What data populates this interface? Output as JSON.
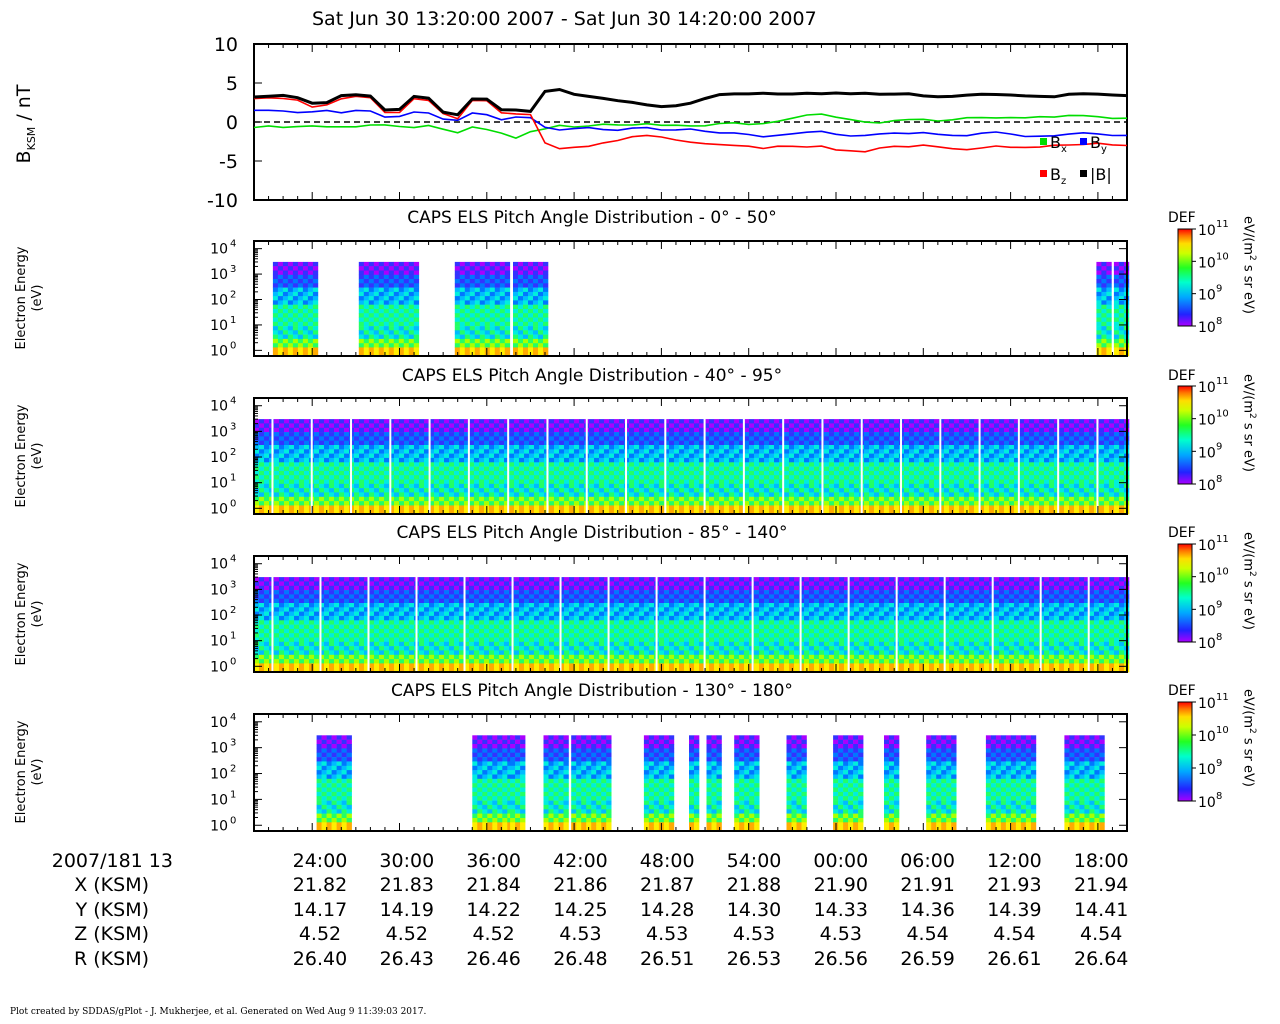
{
  "title": "Sat Jun 30 13:20:00 2007 - Sat Jun 30 14:20:00 2007",
  "magnetometer": {
    "ylabel_main": "B",
    "ylabel_sub": "KSM",
    "ylabel_unit": " / nT",
    "yticks": [
      "10",
      "5",
      "0",
      "-5",
      "-10"
    ],
    "legend": [
      {
        "key": "Bx",
        "label": "B",
        "sub": "x",
        "color": "#00dd00"
      },
      {
        "key": "By",
        "label": "B",
        "sub": "y",
        "color": "#0000ff"
      },
      {
        "key": "Bz",
        "label": "B",
        "sub": "z",
        "color": "#ff0000"
      },
      {
        "key": "Bt",
        "label": "|B|",
        "sub": "",
        "color": "#000000"
      }
    ]
  },
  "spectrograms": [
    {
      "title": "CAPS ELS Pitch Angle Distribution - 0° - 50°"
    },
    {
      "title": "CAPS ELS Pitch Angle Distribution - 40° - 95°"
    },
    {
      "title": "CAPS ELS Pitch Angle Distribution - 85° - 140°"
    },
    {
      "title": "CAPS ELS Pitch Angle Distribution - 130° - 180°"
    }
  ],
  "spec_ylabel_1": "Electron Energy",
  "spec_ylabel_2": "(eV)",
  "spec_yticks": [
    {
      "base": "10",
      "exp": "4"
    },
    {
      "base": "10",
      "exp": "3"
    },
    {
      "base": "10",
      "exp": "2"
    },
    {
      "base": "10",
      "exp": "1"
    },
    {
      "base": "10",
      "exp": "0"
    }
  ],
  "colorbar": {
    "label_top": "DEF",
    "unit_pre": "eV/(m",
    "unit_exp": "2",
    "unit_post": " s sr eV)",
    "ticks": [
      {
        "base": "10",
        "exp": "11"
      },
      {
        "base": "10",
        "exp": "10"
      },
      {
        "base": "10",
        "exp": "9"
      },
      {
        "base": "10",
        "exp": "8"
      }
    ]
  },
  "ephemeris": {
    "row_labels": [
      "2007/181 13",
      "X (KSM)",
      "Y (KSM)",
      "Z (KSM)",
      "R (KSM)"
    ],
    "times": [
      "24:00",
      "30:00",
      "36:00",
      "42:00",
      "48:00",
      "54:00",
      "00:00",
      "06:00",
      "12:00",
      "18:00"
    ],
    "X": [
      "21.82",
      "21.83",
      "21.84",
      "21.86",
      "21.87",
      "21.88",
      "21.90",
      "21.91",
      "21.93",
      "21.94"
    ],
    "Y": [
      "14.17",
      "14.19",
      "14.22",
      "14.25",
      "14.28",
      "14.30",
      "14.33",
      "14.36",
      "14.39",
      "14.41"
    ],
    "Z": [
      "4.52",
      "4.52",
      "4.52",
      "4.53",
      "4.53",
      "4.53",
      "4.53",
      "4.54",
      "4.54",
      "4.54"
    ],
    "R": [
      "26.40",
      "26.43",
      "26.46",
      "26.48",
      "26.51",
      "26.53",
      "26.56",
      "26.59",
      "26.61",
      "26.64"
    ]
  },
  "footer": "Plot created by SDDAS/gPlot - J. Mukherjee, et al.  Generated on Wed Aug 9 11:39:03 2017.",
  "chart_data": [
    {
      "type": "line",
      "x": [
        0,
        1,
        2,
        3,
        4,
        5,
        6,
        7,
        8,
        9,
        10,
        11,
        12,
        13,
        14,
        15,
        16,
        17,
        18,
        19,
        20,
        21,
        22,
        23,
        24,
        25,
        26,
        27,
        28,
        29,
        30,
        31,
        32,
        33,
        34,
        35,
        36,
        37,
        38,
        39,
        40,
        41,
        42,
        43,
        44,
        45,
        46,
        47,
        48,
        49,
        50,
        51,
        52,
        53,
        54,
        55,
        56,
        57,
        58,
        59,
        60
      ],
      "series": [
        {
          "name": "|B|",
          "color": "#000000",
          "values": [
            3.2,
            3.2,
            3.3,
            3.1,
            2.5,
            2.6,
            3.4,
            3.4,
            3.2,
            1.5,
            1.7,
            3.4,
            3.1,
            1.2,
            0.8,
            2.9,
            3.0,
            1.7,
            1.6,
            1.3,
            3.8,
            4.1,
            3.6,
            3.4,
            3.1,
            2.7,
            2.4,
            2.1,
            2.0,
            2.2,
            2.5,
            3.0,
            3.4,
            3.5,
            3.6,
            3.8,
            3.7,
            3.6,
            3.6,
            3.5,
            3.7,
            3.7,
            3.8,
            3.6,
            3.5,
            3.5,
            3.3,
            3.3,
            3.4,
            3.5,
            3.5,
            3.4,
            3.4,
            3.4,
            3.4,
            3.3,
            3.5,
            3.5,
            3.5,
            3.5,
            3.5
          ]
        },
        {
          "name": "Bx",
          "color": "#00dd00",
          "values": [
            -0.7,
            -0.6,
            -0.8,
            -0.6,
            -0.4,
            -0.5,
            -0.6,
            -0.7,
            -0.5,
            -0.4,
            -0.5,
            -0.6,
            -0.4,
            -1.0,
            -1.5,
            -0.7,
            -0.9,
            -1.3,
            -2.0,
            -1.3,
            -1.0,
            -0.5,
            -0.6,
            -0.4,
            -0.2,
            -0.4,
            -0.5,
            -0.3,
            -0.4,
            -0.3,
            -0.4,
            -0.5,
            -0.3,
            -0.2,
            -0.3,
            -0.1,
            0.2,
            0.5,
            0.8,
            0.9,
            0.6,
            0.4,
            0.1,
            -0.1,
            0.1,
            0.2,
            0.3,
            0.2,
            0.4,
            0.6,
            0.5,
            0.4,
            0.5,
            0.6,
            0.8,
            0.7,
            0.8,
            0.7,
            0.6,
            0.5,
            0.6
          ]
        },
        {
          "name": "By",
          "color": "#0000ff",
          "values": [
            1.5,
            1.4,
            1.3,
            1.2,
            1.4,
            1.6,
            1.2,
            1.4,
            1.3,
            0.6,
            0.8,
            1.4,
            1.2,
            0.3,
            0.1,
            1.1,
            1.0,
            0.4,
            0.7,
            0.5,
            -0.8,
            -1.1,
            -0.8,
            -0.6,
            -0.9,
            -1.1,
            -0.9,
            -0.8,
            -1.0,
            -0.9,
            -0.8,
            -1.2,
            -1.5,
            -1.5,
            -1.6,
            -1.8,
            -1.6,
            -1.5,
            -1.4,
            -1.3,
            -1.6,
            -1.7,
            -1.6,
            -1.5,
            -1.5,
            -1.6,
            -1.4,
            -1.5,
            -1.6,
            -1.7,
            -1.5,
            -1.4,
            -1.6,
            -1.8,
            -1.7,
            -1.7,
            -1.6,
            -1.5,
            -1.6,
            -1.7,
            -1.6
          ]
        },
        {
          "name": "Bz",
          "color": "#ff0000",
          "values": [
            3.0,
            3.0,
            2.9,
            2.8,
            2.0,
            2.3,
            3.0,
            3.2,
            3.0,
            1.2,
            1.3,
            3.1,
            2.8,
            1.0,
            0.3,
            2.7,
            2.8,
            1.3,
            1.1,
            0.9,
            -2.8,
            -3.5,
            -3.2,
            -3.0,
            -2.6,
            -2.4,
            -2.0,
            -1.8,
            -1.9,
            -2.2,
            -2.5,
            -2.8,
            -3.0,
            -3.1,
            -3.1,
            -3.3,
            -3.0,
            -3.1,
            -3.3,
            -3.2,
            -3.6,
            -3.6,
            -3.7,
            -3.3,
            -3.2,
            -3.3,
            -3.0,
            -3.1,
            -3.3,
            -3.5,
            -3.4,
            -3.2,
            -3.3,
            -3.2,
            -3.1,
            -2.9,
            -3.0,
            -3.0,
            -2.8,
            -2.9,
            -2.9
          ]
        }
      ],
      "ylabel": "BKSM / nT",
      "ylim": [
        -10,
        10
      ],
      "xlim": [
        0,
        60
      ],
      "legend_position": "bottom-right"
    },
    {
      "type": "heatmap",
      "title": "CAPS ELS Pitch Angle Distribution - 0° - 50°",
      "ylabel": "Electron Energy (eV)",
      "yscale": "log",
      "ylim": [
        0.6,
        20000
      ],
      "color_scale": "log",
      "zlim": [
        100000000,
        100000000000
      ],
      "data_intervals": [
        [
          1.3,
          4.2
        ],
        [
          7.2,
          11.2
        ],
        [
          13.8,
          17.4
        ],
        [
          17.8,
          20.1
        ],
        [
          57.9,
          58.6
        ],
        [
          59.1,
          60
        ]
      ]
    },
    {
      "type": "heatmap",
      "title": "CAPS ELS Pitch Angle Distribution - 40° - 95°",
      "ylabel": "Electron Energy (eV)",
      "yscale": "log",
      "ylim": [
        0.6,
        20000
      ],
      "color_scale": "log",
      "zlim": [
        100000000,
        100000000000
      ],
      "data_intervals": [
        [
          0,
          60
        ]
      ]
    },
    {
      "type": "heatmap",
      "title": "CAPS ELS Pitch Angle Distribution - 85° - 140°",
      "ylabel": "Electron Energy (eV)",
      "yscale": "log",
      "ylim": [
        0.6,
        20000
      ],
      "color_scale": "log",
      "zlim": [
        100000000,
        100000000000
      ],
      "data_intervals": [
        [
          0,
          60
        ]
      ]
    },
    {
      "type": "heatmap",
      "title": "CAPS ELS Pitch Angle Distribution - 130° - 180°",
      "ylabel": "Electron Energy (eV)",
      "yscale": "log",
      "ylim": [
        0.6,
        20000
      ],
      "color_scale": "log",
      "zlim": [
        100000000,
        100000000000
      ],
      "data_intervals": [
        [
          4.3,
          6.6
        ],
        [
          15.0,
          17.5
        ],
        [
          17.6,
          18.3
        ],
        [
          19.9,
          21.6
        ],
        [
          21.8,
          24.5
        ],
        [
          26.8,
          28.8
        ],
        [
          29.9,
          30.5
        ],
        [
          31.1,
          31.9
        ],
        [
          33.0,
          34.6
        ],
        [
          36.6,
          37.9
        ],
        [
          39.8,
          41.7
        ],
        [
          43.3,
          44.1
        ],
        [
          46.2,
          48.2
        ],
        [
          50.3,
          53.5
        ],
        [
          55.7,
          58.3
        ]
      ]
    }
  ]
}
